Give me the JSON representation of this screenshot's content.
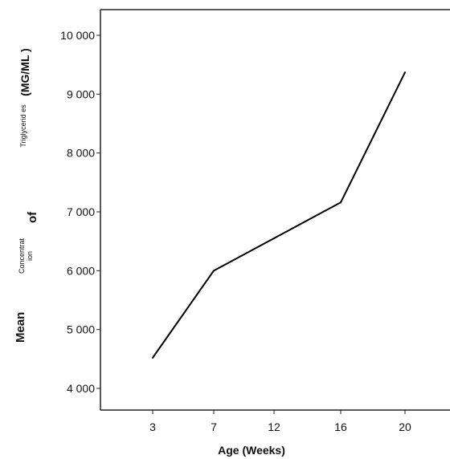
{
  "chart_data": {
    "type": "line",
    "xlabel": "Age (Weeks)",
    "ylabel_parts": [
      "Mean",
      "Concentrat ion",
      "of",
      "Triglycerid es",
      "(MG/ML )"
    ],
    "x_categories": [
      "3",
      "7",
      "12",
      "16",
      "20"
    ],
    "x_values": [
      3,
      7,
      12,
      16,
      20
    ],
    "y_ticks": [
      4000,
      5000,
      6000,
      7000,
      8000,
      9000,
      10000
    ],
    "y_tick_labels": [
      "4 000",
      "5 000",
      "6 000",
      "7 000",
      "8 000",
      "9 000",
      "10 000"
    ],
    "ylim": [
      3700,
      10300
    ],
    "series": [
      {
        "x": [
          3,
          7,
          16,
          20
        ],
        "y": [
          4520,
          6000,
          7160,
          9370
        ],
        "color": "#000000"
      }
    ],
    "grid": false,
    "legend": "none"
  }
}
